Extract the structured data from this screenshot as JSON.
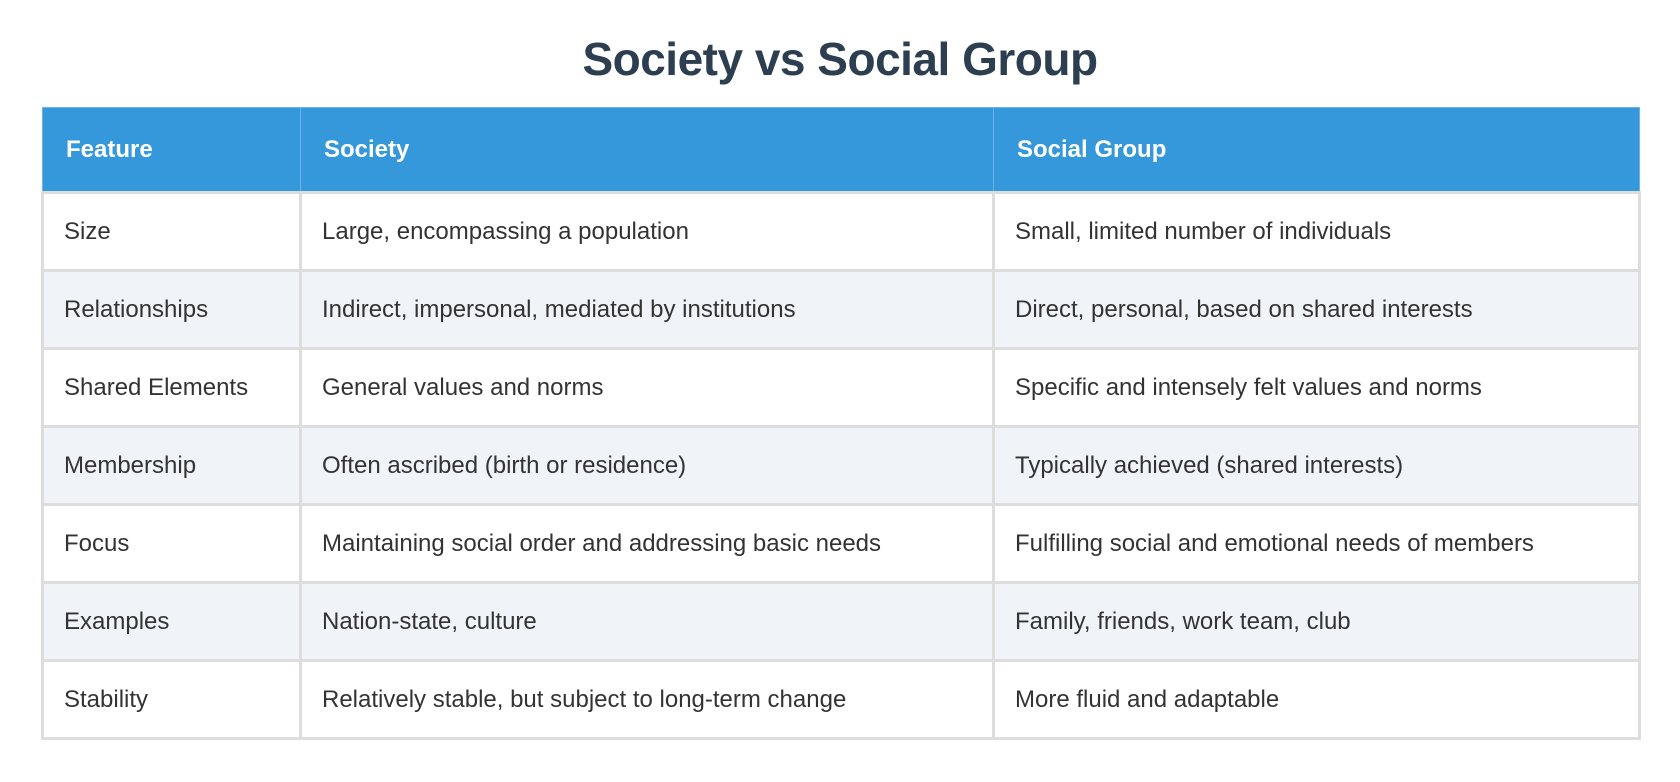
{
  "title": "Society vs Social Group",
  "table": {
    "header": [
      "Feature",
      "Society",
      "Social Group"
    ],
    "rows": [
      [
        "Size",
        "Large, encompassing a population",
        "Small, limited number of individuals"
      ],
      [
        "Relationships",
        "Indirect, impersonal, mediated by institutions",
        "Direct, personal, based on shared interests"
      ],
      [
        "Shared Elements",
        "General values and norms",
        "Specific and intensely felt values and norms"
      ],
      [
        "Membership",
        "Often ascribed (birth or residence)",
        "Typically achieved (shared interests)"
      ],
      [
        "Focus",
        "Maintaining social order and addressing basic needs",
        "Fulfilling social and emotional needs of members"
      ],
      [
        "Examples",
        "Nation-state, culture",
        "Family, friends, work team, club"
      ],
      [
        "Stability",
        "Relatively stable, but subject to long-term change",
        "More fluid and adaptable"
      ]
    ]
  }
}
